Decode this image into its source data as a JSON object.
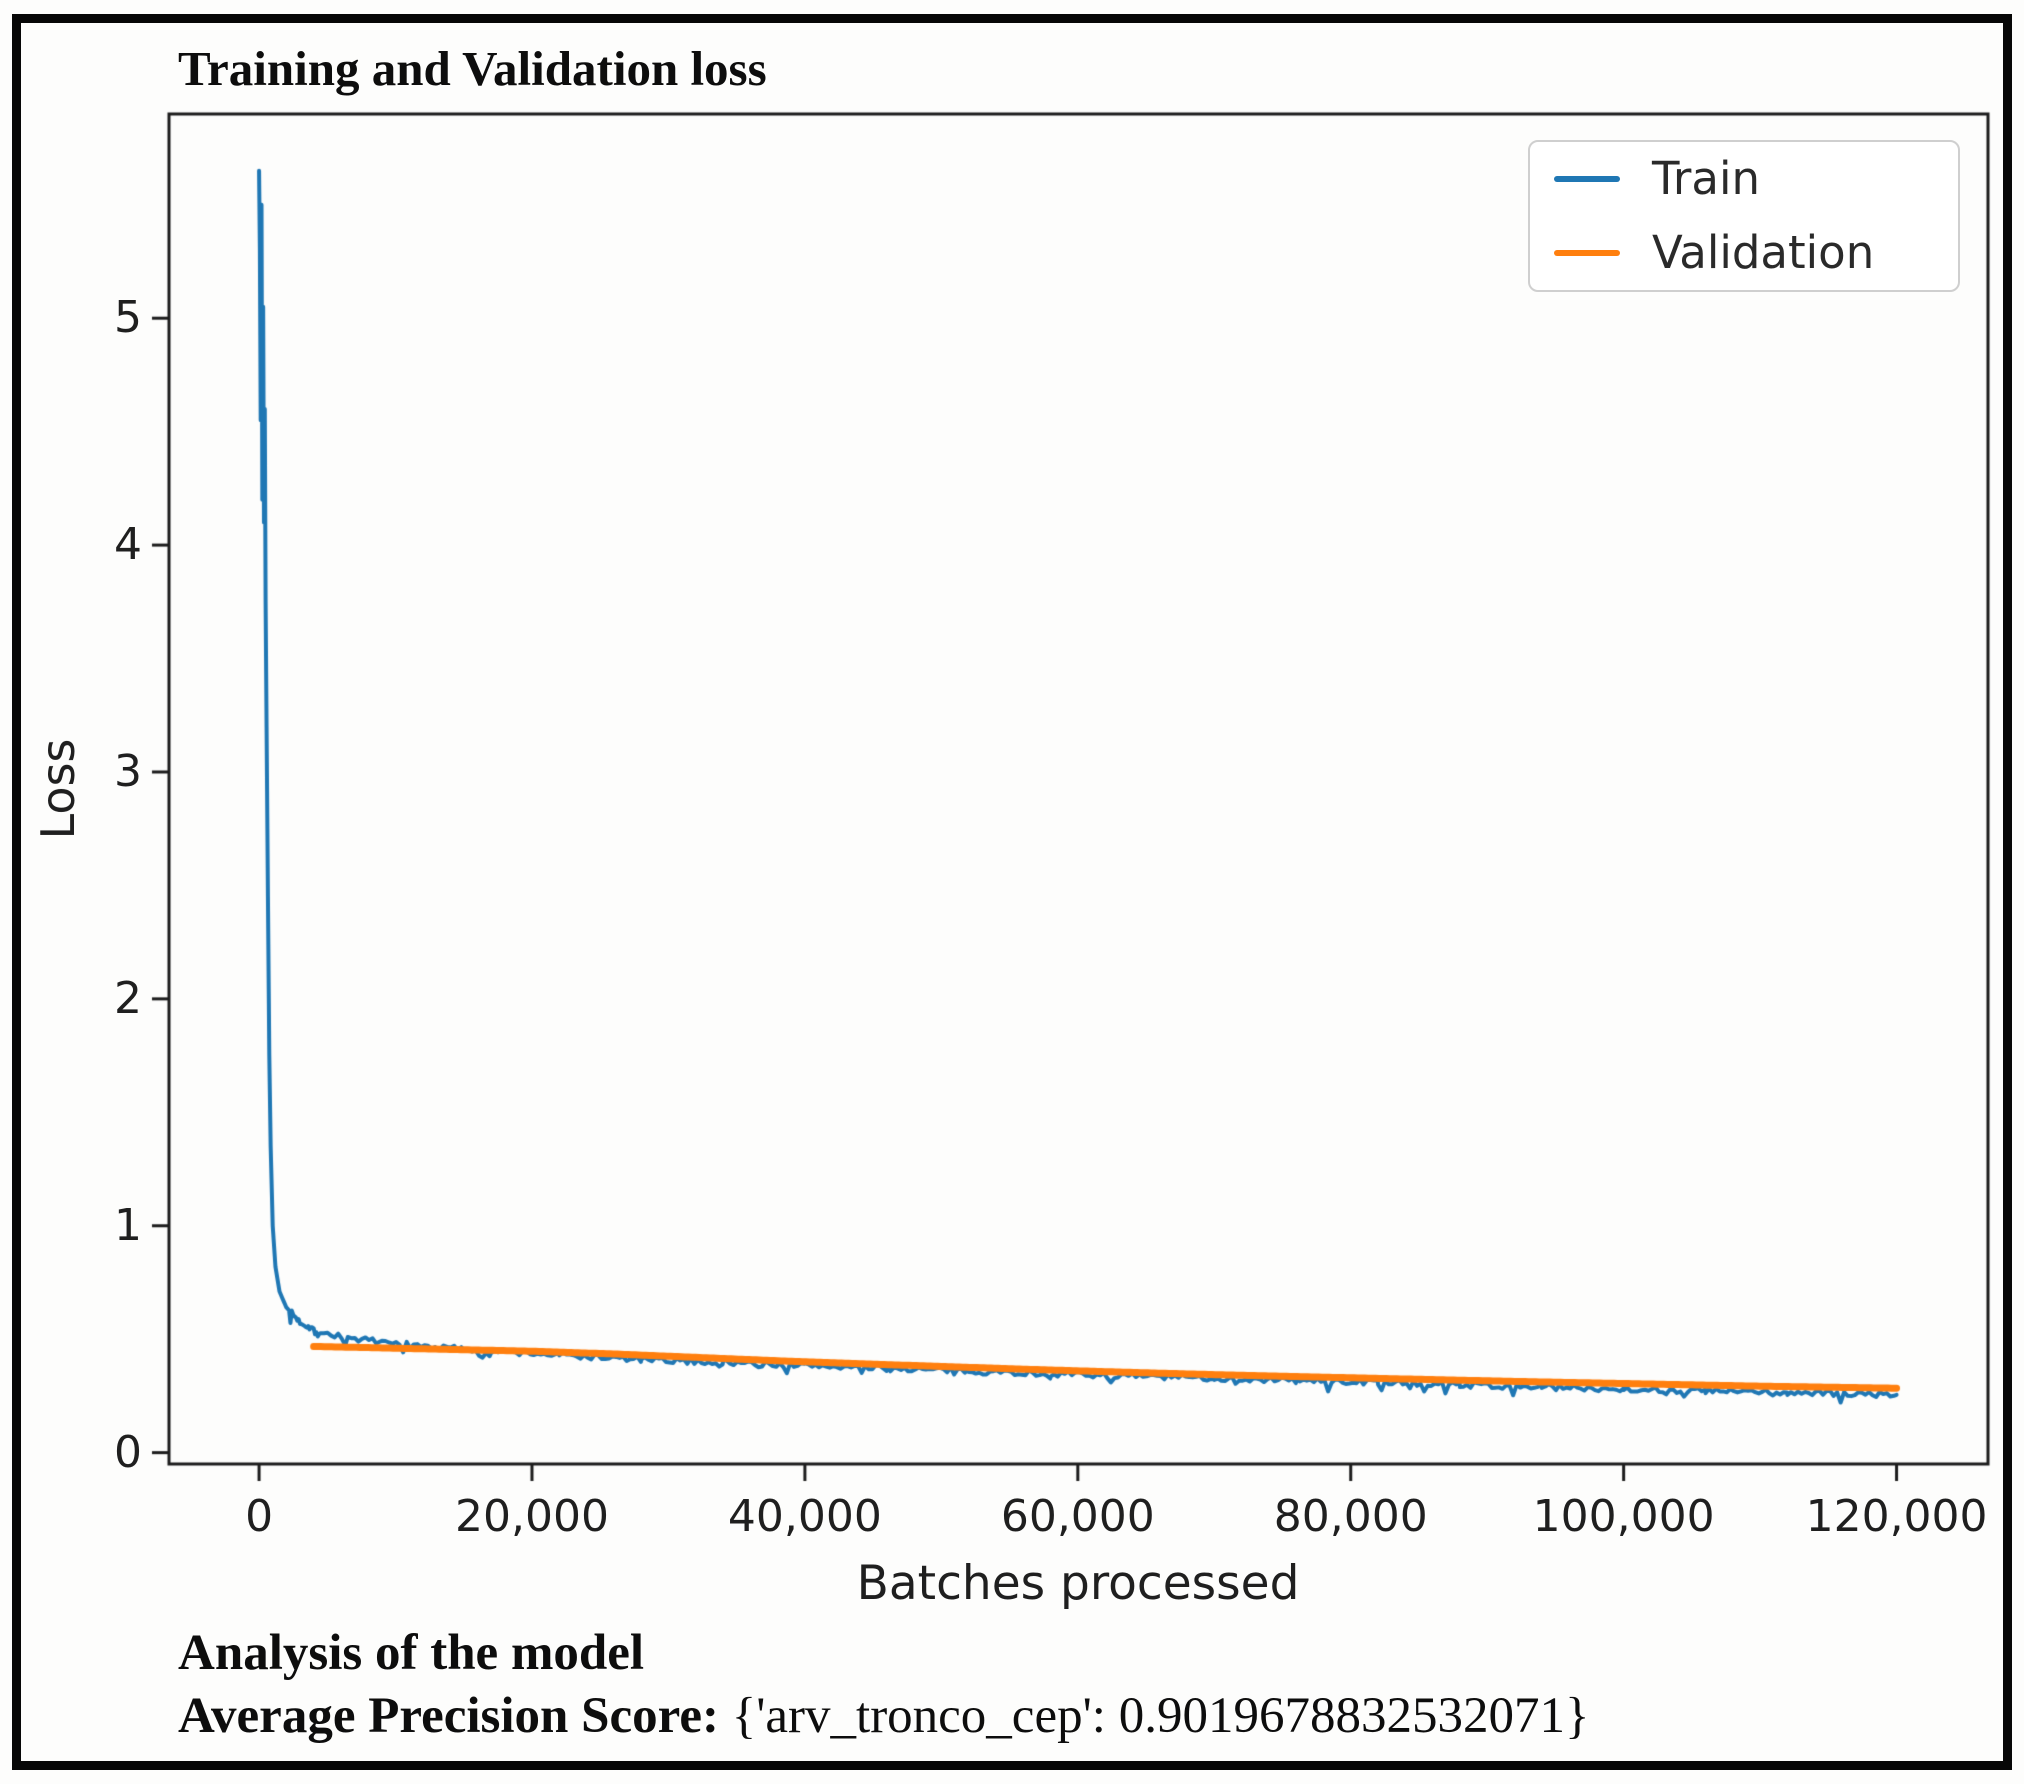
{
  "chart_data": {
    "type": "line",
    "title": "Training and Validation loss",
    "xlabel": "Batches processed",
    "ylabel": "Loss",
    "xlim": [
      -6600,
      126700
    ],
    "ylim": [
      -0.05,
      5.9
    ],
    "grid": false,
    "x_ticks": [
      0,
      20000,
      40000,
      60000,
      80000,
      100000,
      120000
    ],
    "x_tick_labels": [
      "0",
      "20,000",
      "40,000",
      "60,000",
      "80,000",
      "100,000",
      "120,000"
    ],
    "y_ticks": [
      0,
      1,
      2,
      3,
      4,
      5
    ],
    "y_tick_labels": [
      "0",
      "1",
      "2",
      "3",
      "4",
      "5"
    ],
    "legend": {
      "position": "upper right",
      "entries": [
        {
          "label": "Train",
          "color": "#1f77b4"
        },
        {
          "label": "Validation",
          "color": "#ff7f0e"
        }
      ]
    },
    "series": [
      {
        "name": "Train",
        "color": "#1f77b4",
        "noise": 0.013,
        "points": [
          [
            0,
            5.65
          ],
          [
            60,
            5.3
          ],
          [
            120,
            4.55
          ],
          [
            180,
            5.5
          ],
          [
            240,
            4.2
          ],
          [
            300,
            5.05
          ],
          [
            360,
            4.1
          ],
          [
            420,
            4.6
          ],
          [
            480,
            3.75
          ],
          [
            550,
            3.2
          ],
          [
            650,
            2.45
          ],
          [
            750,
            1.75
          ],
          [
            850,
            1.35
          ],
          [
            1000,
            1.0
          ],
          [
            1200,
            0.82
          ],
          [
            1500,
            0.71
          ],
          [
            2000,
            0.64
          ],
          [
            3000,
            0.575
          ],
          [
            4500,
            0.53
          ],
          [
            6500,
            0.505
          ],
          [
            9000,
            0.487
          ],
          [
            13000,
            0.465
          ],
          [
            17000,
            0.448
          ],
          [
            22000,
            0.43
          ],
          [
            28000,
            0.41
          ],
          [
            34000,
            0.398
          ],
          [
            40000,
            0.385
          ],
          [
            46000,
            0.372
          ],
          [
            52000,
            0.36
          ],
          [
            58000,
            0.348
          ],
          [
            64000,
            0.338
          ],
          [
            70000,
            0.328
          ],
          [
            76000,
            0.318
          ],
          [
            82000,
            0.31
          ],
          [
            88000,
            0.3
          ],
          [
            94000,
            0.29
          ],
          [
            100000,
            0.28
          ],
          [
            106000,
            0.272
          ],
          [
            112000,
            0.264
          ],
          [
            120000,
            0.255
          ]
        ]
      },
      {
        "name": "Validation",
        "color": "#ff7f0e",
        "noise": 0,
        "points": [
          [
            4000,
            0.468
          ],
          [
            8000,
            0.463
          ],
          [
            14000,
            0.455
          ],
          [
            20000,
            0.447
          ],
          [
            26000,
            0.435
          ],
          [
            32000,
            0.42
          ],
          [
            38000,
            0.405
          ],
          [
            44000,
            0.392
          ],
          [
            50000,
            0.38
          ],
          [
            56000,
            0.368
          ],
          [
            62000,
            0.357
          ],
          [
            68000,
            0.347
          ],
          [
            74000,
            0.338
          ],
          [
            80000,
            0.33
          ],
          [
            86000,
            0.322
          ],
          [
            92000,
            0.314
          ],
          [
            98000,
            0.307
          ],
          [
            104000,
            0.3
          ],
          [
            110000,
            0.293
          ],
          [
            120000,
            0.284
          ]
        ]
      }
    ]
  },
  "analysis": {
    "heading": "Analysis of the model",
    "score_label": "Average Precision Score:",
    "score_value": " {'arv_tronco_cep': 0.9019678832532071}"
  }
}
